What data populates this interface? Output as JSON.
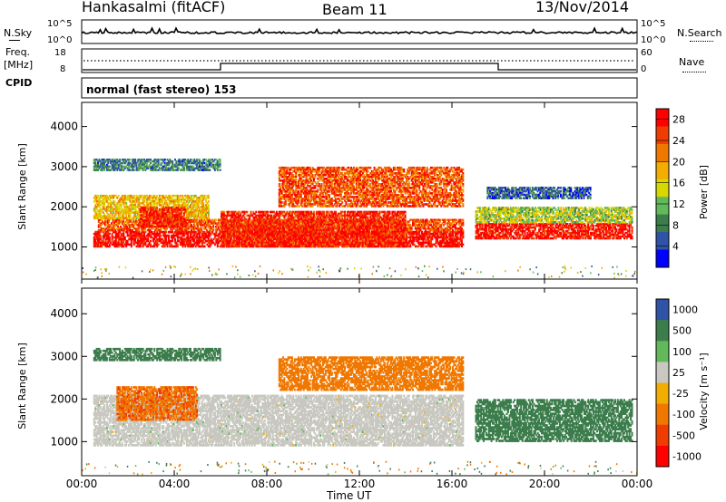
{
  "header": {
    "station": "Hankasalmi (fitACF)",
    "beam": "Beam 11",
    "date": "13/Nov/2014"
  },
  "sky_panel": {
    "left_label": "N.Sky",
    "left_ticks": [
      "10^5",
      "10^0"
    ],
    "right_ticks": [
      "10^5",
      "10^0"
    ],
    "right_label": "N.Search"
  },
  "freq_panel": {
    "left_label_1": "Freq.",
    "left_label_2": "[MHz]",
    "left_ticks": [
      "18",
      "8"
    ],
    "right_ticks": [
      "60",
      "0"
    ],
    "right_label": "Nave"
  },
  "cpid_panel": {
    "label": "CPID",
    "mode_text": "normal (fast stereo) 153"
  },
  "colors": {
    "power_scale": [
      "#0000ff",
      "#2f53a6",
      "#3c7d4c",
      "#61b95a",
      "#d8d800",
      "#f2ad00",
      "#f07800",
      "#f03c00",
      "#ff0000"
    ],
    "velocity_scale": [
      "#2f53a6",
      "#3c7d4c",
      "#61b95a",
      "#c8c8c0",
      "#f2ad00",
      "#f07800",
      "#f03c00",
      "#ff0000"
    ],
    "ground_scatter": "#c8c8c0"
  },
  "chart_data": [
    {
      "type": "heatmap",
      "panel": "power",
      "ylabel": "Slant Range [km]",
      "yticks": [
        "1000",
        "2000",
        "3000",
        "4000"
      ],
      "ylim": [
        200,
        4600
      ],
      "xlim": [
        0,
        24
      ],
      "colorbar": {
        "label": "Power [dB]",
        "ticks": [
          "4",
          "8",
          "12",
          "16",
          "20",
          "24",
          "28"
        ],
        "range": [
          0,
          30
        ]
      },
      "bands": [
        {
          "x": [
            0.5,
            16.5
          ],
          "y": [
            1000,
            1400
          ],
          "value": 29
        },
        {
          "x": [
            0.7,
            16.5
          ],
          "y": [
            1400,
            1700
          ],
          "value": 24
        },
        {
          "x": [
            0.5,
            5.5
          ],
          "y": [
            1700,
            2300
          ],
          "value": 18
        },
        {
          "x": [
            2.5,
            4.5
          ],
          "y": [
            1500,
            2000
          ],
          "value": 27
        },
        {
          "x": [
            6.0,
            14.0
          ],
          "y": [
            1000,
            1900
          ],
          "value": 27
        },
        {
          "x": [
            8.5,
            16.5
          ],
          "y": [
            2000,
            3000
          ],
          "value": 24
        },
        {
          "x": [
            17.0,
            23.8
          ],
          "y": [
            1200,
            1600
          ],
          "value": 28
        },
        {
          "x": [
            17.0,
            23.8
          ],
          "y": [
            1600,
            2000
          ],
          "value": 14
        },
        {
          "x": [
            0.5,
            6.0
          ],
          "y": [
            2900,
            3200
          ],
          "value": 8
        },
        {
          "x": [
            17.5,
            22.0
          ],
          "y": [
            2200,
            2500
          ],
          "value": 6
        }
      ]
    },
    {
      "type": "heatmap",
      "panel": "velocity",
      "ylabel": "Slant Range [km]",
      "yticks": [
        "1000",
        "2000",
        "3000",
        "4000"
      ],
      "ylim": [
        200,
        4600
      ],
      "xlim": [
        0,
        24
      ],
      "xticks": [
        "00:00",
        "04:00",
        "08:00",
        "12:00",
        "16:00",
        "20:00",
        "00:00"
      ],
      "xlabel": "Time UT",
      "colorbar": {
        "label": "Velocity [m s⁻¹]",
        "ticks": [
          "1000",
          "500",
          "100",
          "25",
          "-25",
          "-100",
          "-500",
          "-1000"
        ]
      },
      "bands": [
        {
          "x": [
            0.5,
            16.5
          ],
          "y": [
            900,
            2100
          ],
          "value": 0
        },
        {
          "x": [
            1.5,
            5.0
          ],
          "y": [
            1500,
            2300
          ],
          "value": -400
        },
        {
          "x": [
            8.5,
            16.5
          ],
          "y": [
            2200,
            3000
          ],
          "value": -200
        },
        {
          "x": [
            17.0,
            23.8
          ],
          "y": [
            1000,
            2000
          ],
          "value": 300
        },
        {
          "x": [
            0.5,
            6.0
          ],
          "y": [
            2900,
            3200
          ],
          "value": 200
        }
      ]
    }
  ]
}
